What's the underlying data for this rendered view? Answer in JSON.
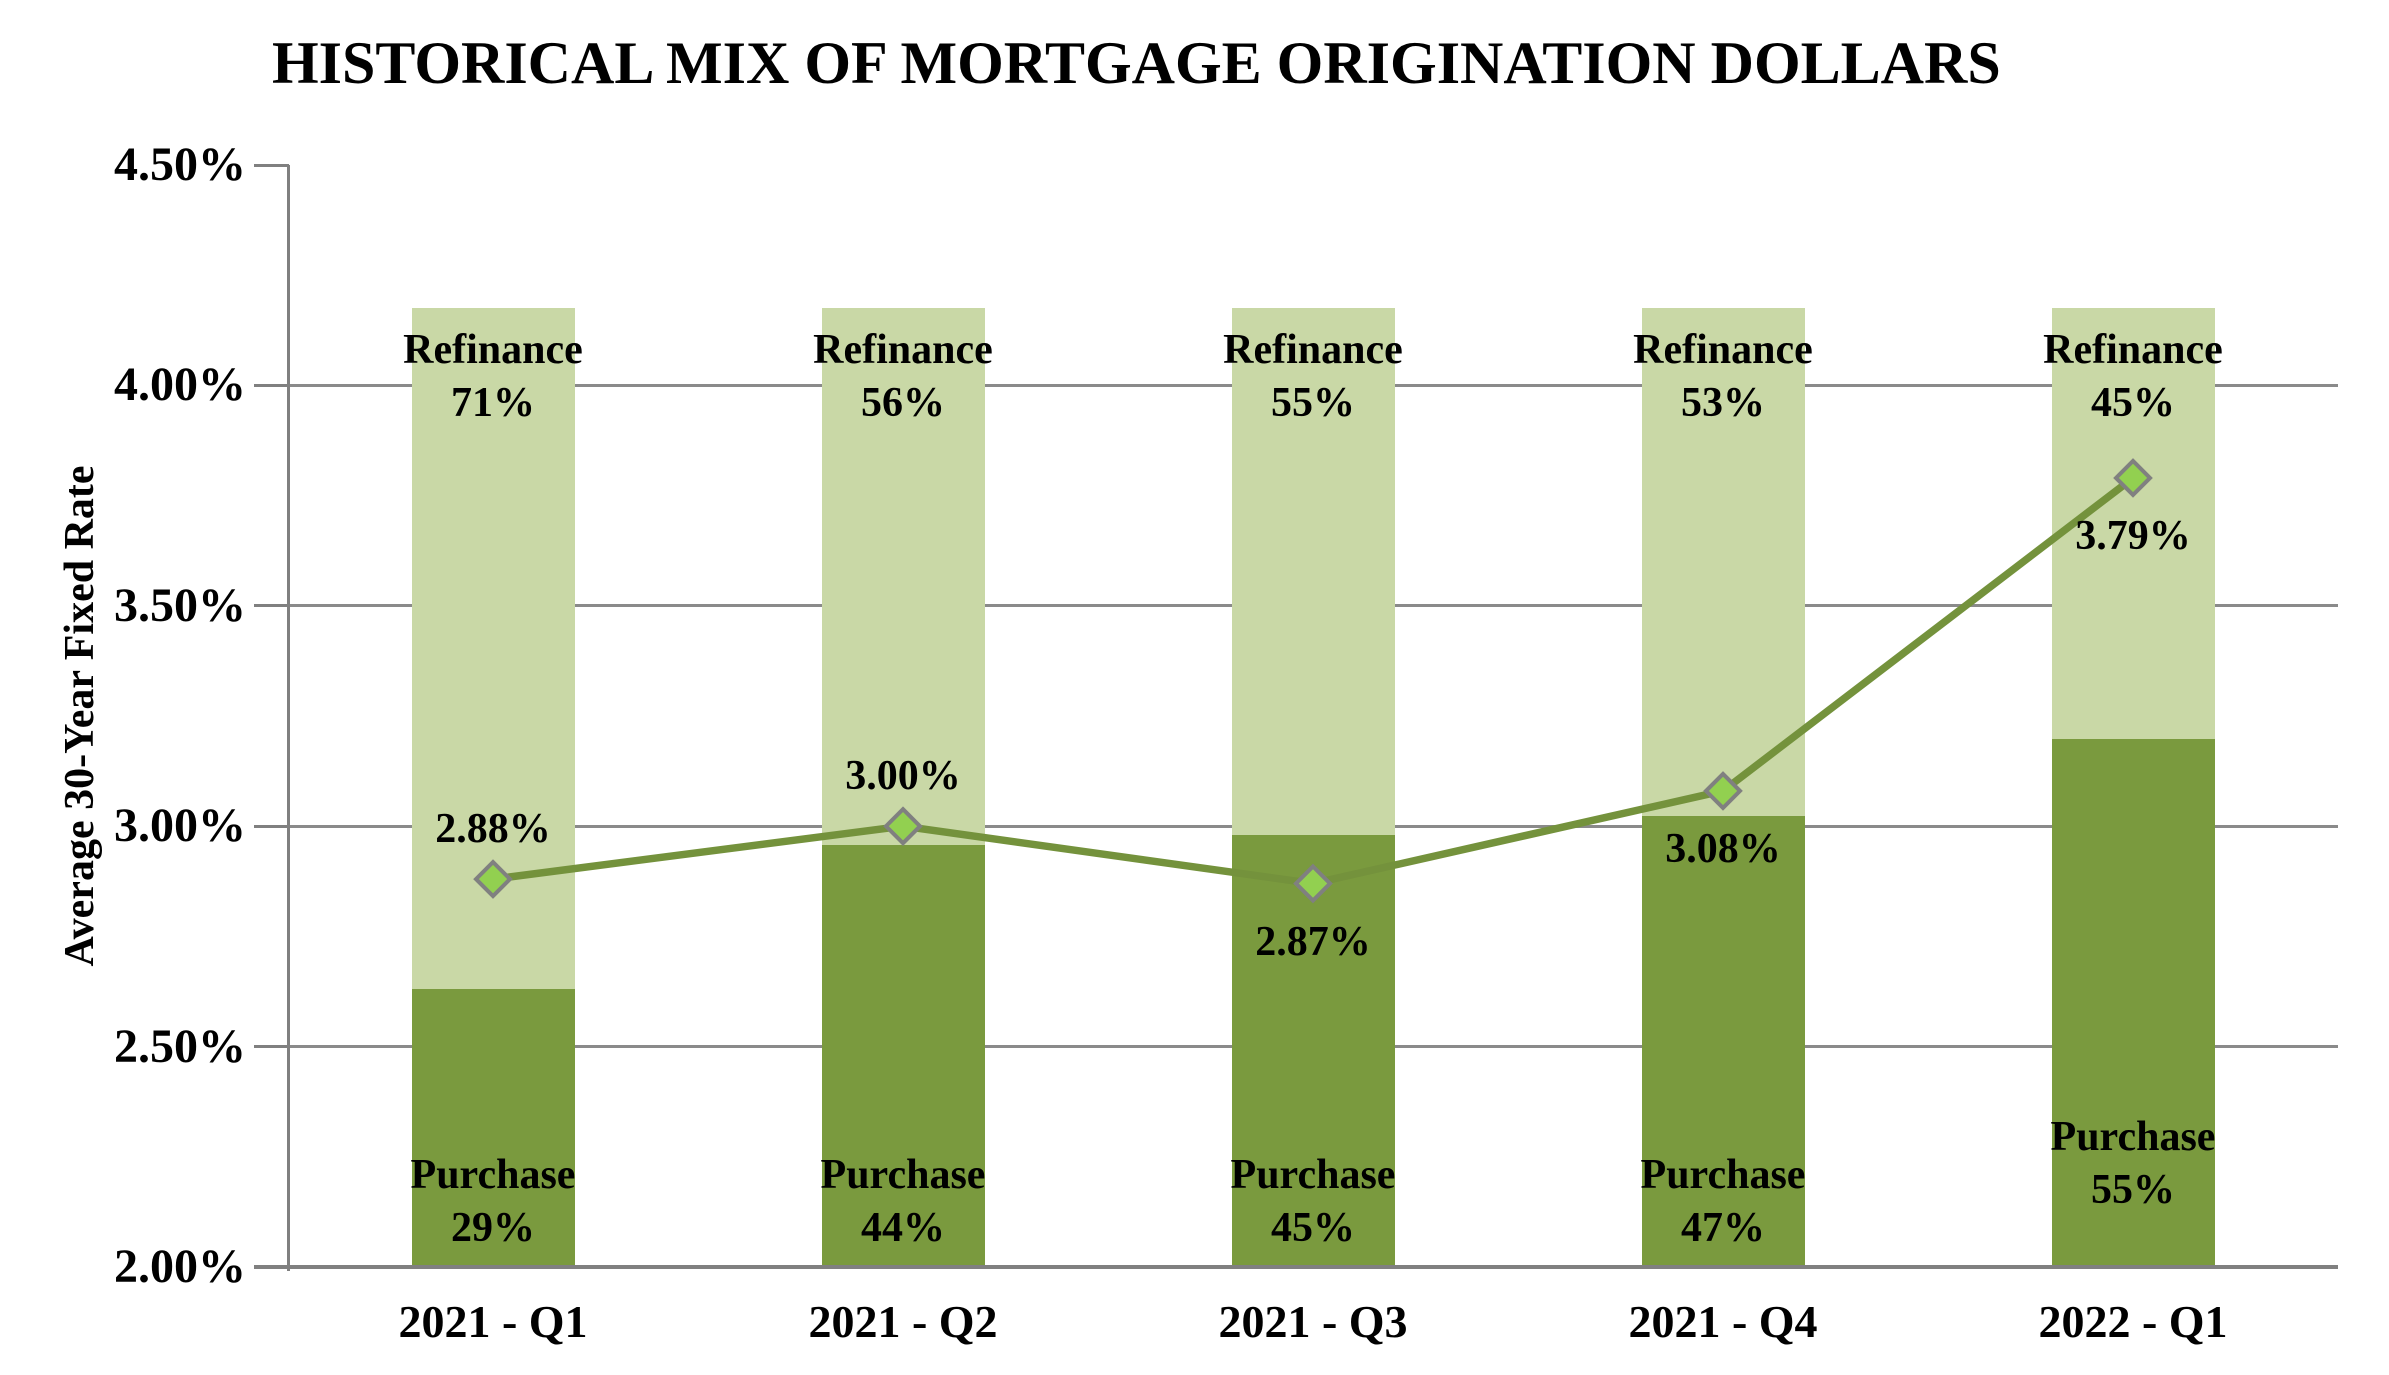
{
  "title": "HISTORICAL MIX OF MORTGAGE ORIGINATION DOLLARS",
  "y_axis": {
    "title": "Average 30-Year Fixed Rate",
    "tick_labels": [
      "4.50%",
      "4.00%",
      "3.50%",
      "3.00%",
      "2.50%",
      "2.00%"
    ]
  },
  "chart_data": {
    "type": "combo-stacked-bar-line",
    "title": "HISTORICAL MIX OF MORTGAGE ORIGINATION DOLLARS",
    "ylabel": "Average 30-Year Fixed Rate",
    "xlabel": "",
    "categories": [
      "2021 - Q1",
      "2021 - Q2",
      "2021 - Q3",
      "2021 - Q4",
      "2022 - Q1"
    ],
    "series": [
      {
        "name": "Purchase",
        "type": "bar-stacked-bottom",
        "values_pct": [
          29,
          44,
          45,
          47,
          55
        ],
        "value_labels": [
          "29%",
          "44%",
          "45%",
          "47%",
          "55%"
        ]
      },
      {
        "name": "Refinance",
        "type": "bar-stacked-top",
        "values_pct": [
          71,
          56,
          55,
          53,
          45
        ],
        "value_labels": [
          "71%",
          "56%",
          "55%",
          "53%",
          "45%"
        ]
      },
      {
        "name": "Average 30-Year Fixed Rate",
        "type": "line",
        "values": [
          2.88,
          3.0,
          2.87,
          3.08,
          3.79
        ],
        "point_labels": [
          "2.88%",
          "3.00%",
          "2.87%",
          "3.08%",
          "3.79%"
        ],
        "label_positions": [
          "above",
          "above",
          "below",
          "below",
          "below"
        ]
      }
    ],
    "axis": {
      "y_min": 2.0,
      "y_max": 4.5,
      "y_step": 0.5,
      "y_tick_labels": [
        "4.50%",
        "4.00%",
        "3.50%",
        "3.00%",
        "2.50%",
        "2.00%"
      ],
      "bar_total_top_value": 4.176,
      "gridlines": true,
      "legend": "none"
    },
    "colors": {
      "purchase_bar": "#7A9A3E",
      "refinance_bar": "#C9D8A6",
      "rate_line": "#74923C",
      "marker_fill": "#92D050",
      "marker_border": "#808080",
      "gridline": "#8A8A8A",
      "axis": "#808080",
      "text": "#000000",
      "background": "#FFFFFF"
    }
  }
}
